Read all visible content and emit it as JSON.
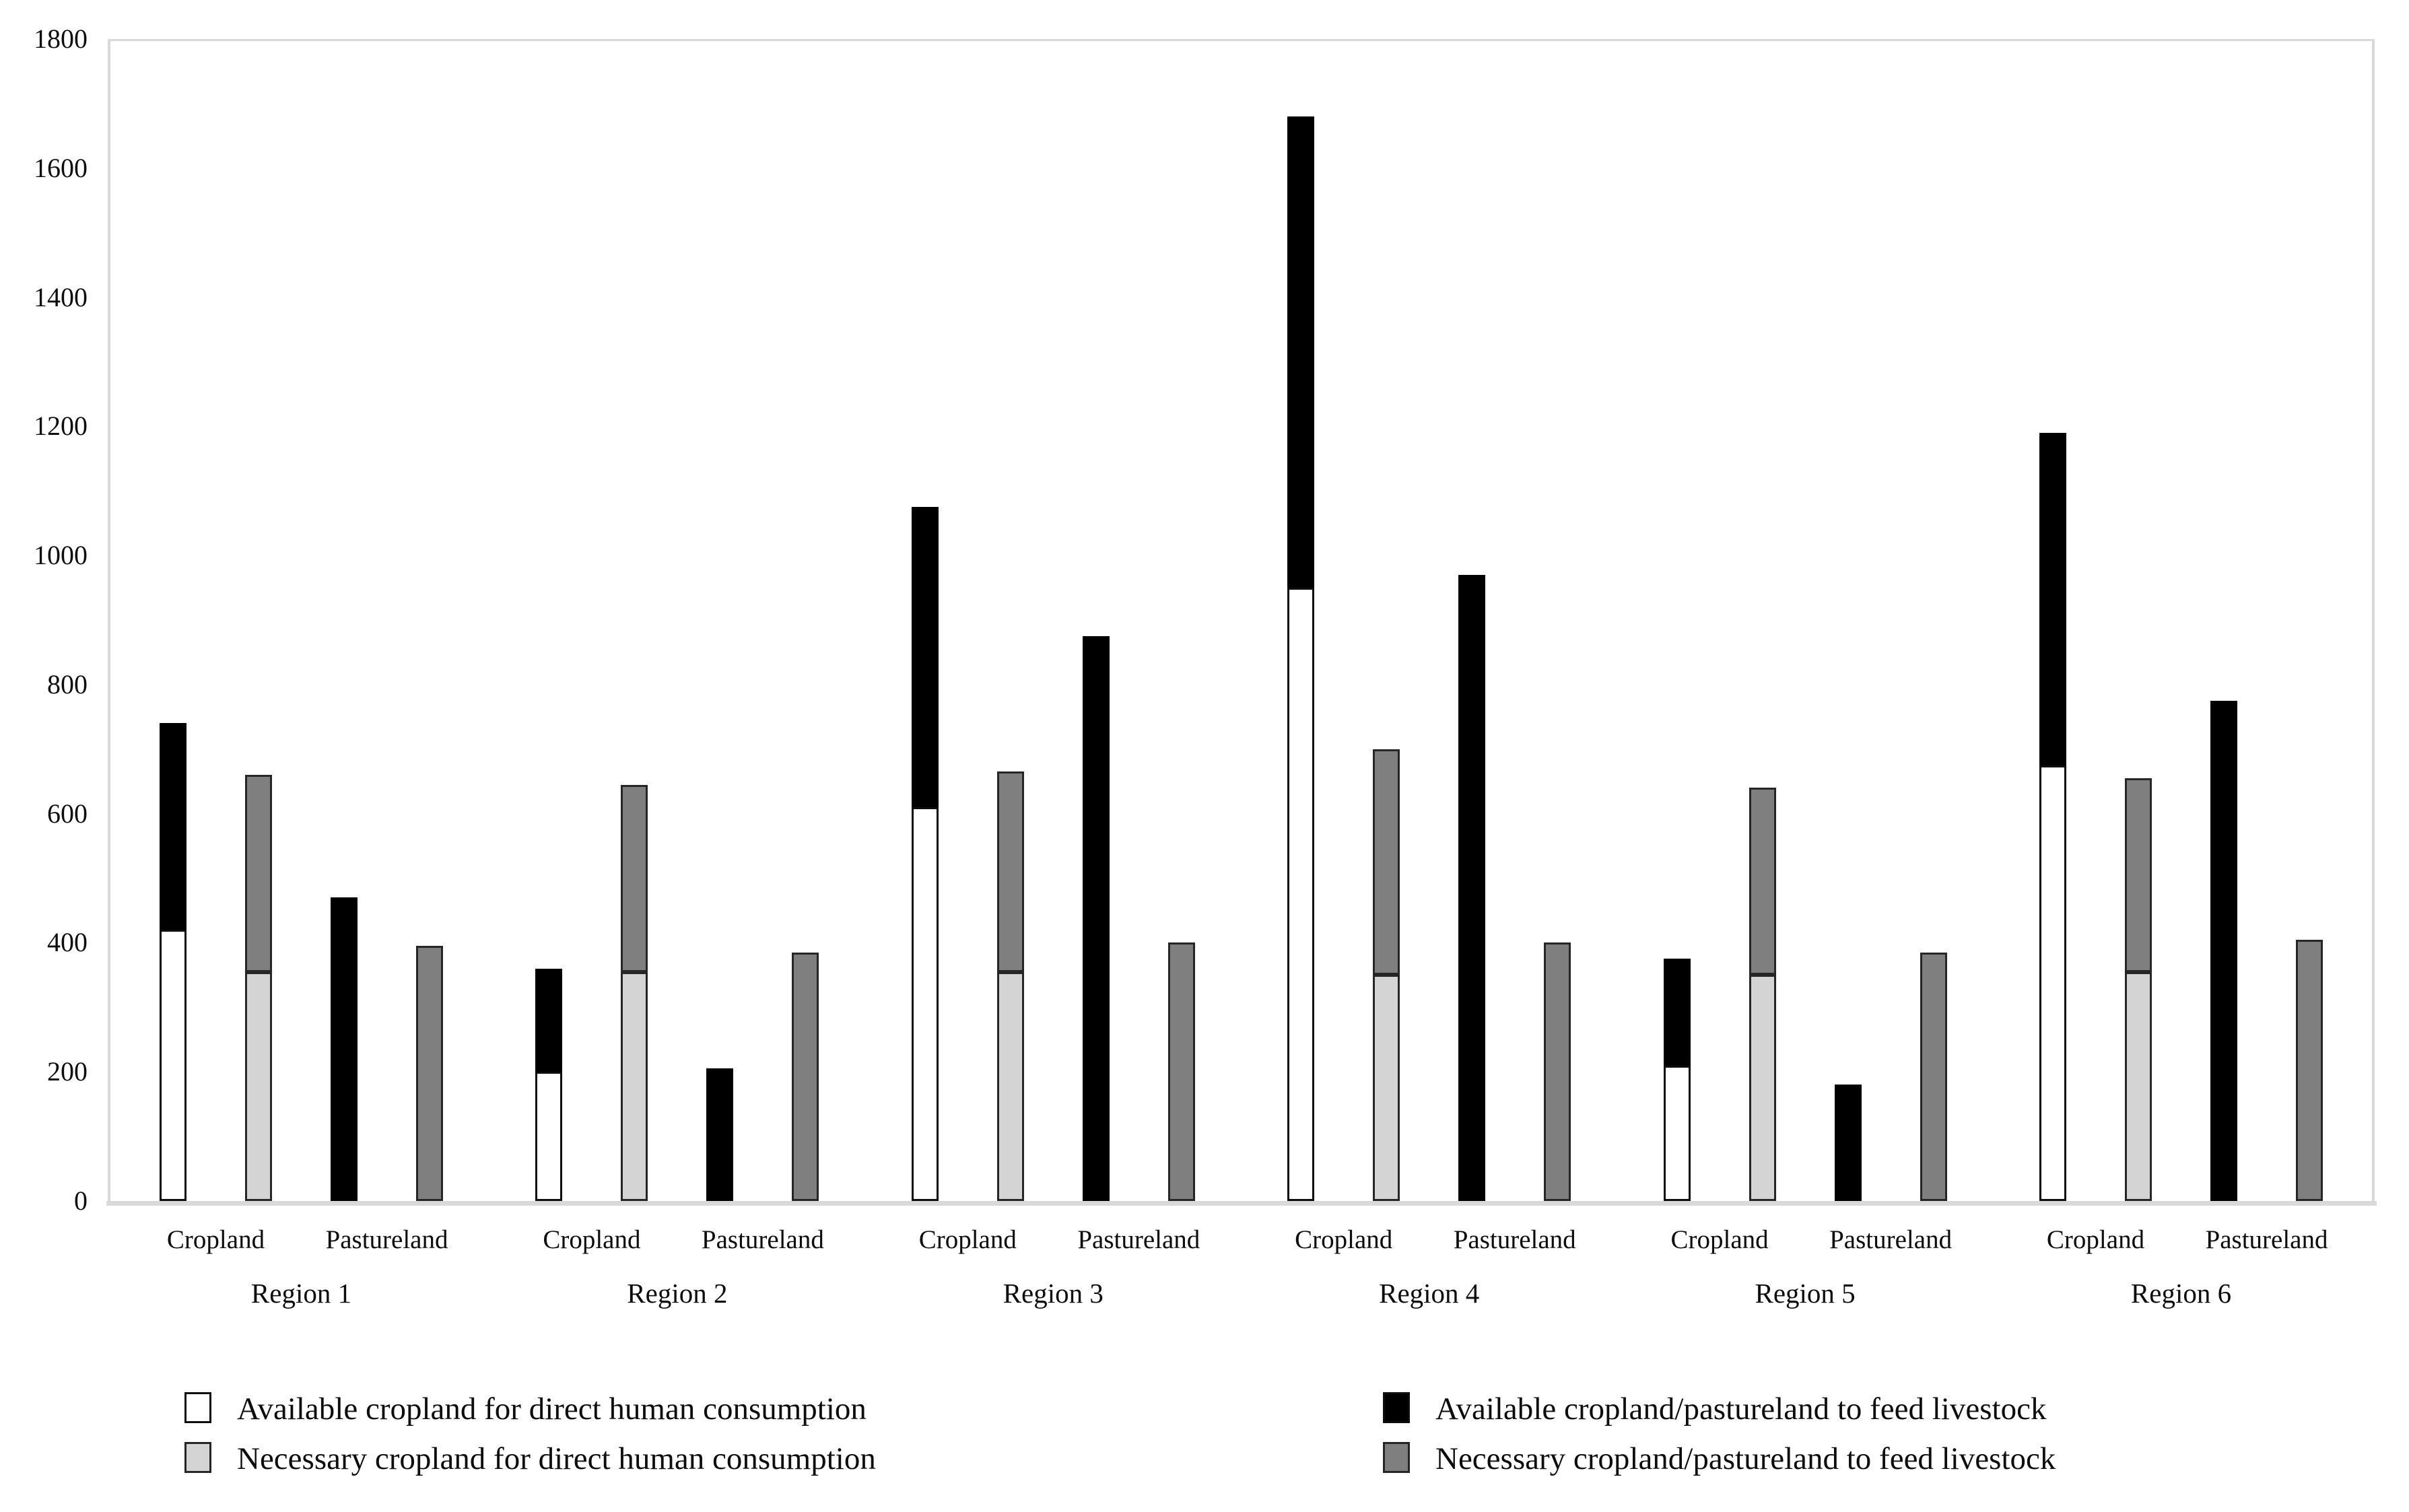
{
  "figure": {
    "background": "#ffffff"
  },
  "colors": {
    "available_human_fill": "#ffffff",
    "available_livestock_fill": "#000000",
    "necessary_human_fill": "#d4d4d4",
    "necessary_livestock_fill": "#7f7f7f",
    "bar_outline": "#0d0d0d",
    "axis_line": "#d9d9d9",
    "text": "#0d0d0d"
  },
  "axes": {
    "ylim": [
      0,
      1800
    ],
    "ytick_step": 200,
    "ytick_labels": [
      "0",
      "200",
      "400",
      "600",
      "800",
      "1000",
      "1200",
      "1400",
      "1600",
      "1800"
    ],
    "grid": "off",
    "cropland_label": "Cropland",
    "pastureland_label": "Pastureland"
  },
  "legend": {
    "position": "bottom-two-columns",
    "items": [
      {
        "label": "Available cropland for direct human consumption",
        "swatch": "available_human",
        "column": 0,
        "row": 0
      },
      {
        "label": "Necessary cropland for direct human consumption",
        "swatch": "necessary_human",
        "column": 0,
        "row": 1
      },
      {
        "label": "Available cropland/pastureland to feed livestock",
        "swatch": "available_livestock",
        "column": 1,
        "row": 0
      },
      {
        "label": "Necessary cropland/pastureland to feed livestock",
        "swatch": "necessary_livestock",
        "column": 1,
        "row": 1
      }
    ]
  },
  "chart_data": {
    "type": "bar",
    "subtype": "stacked-grouped",
    "title": "",
    "xlabel": "",
    "ylabel": "",
    "ylim": [
      0,
      1800
    ],
    "categories": [
      "Region 1",
      "Region 2",
      "Region 3",
      "Region 4",
      "Region 5",
      "Region 6"
    ],
    "group_structure": "Each region has two Cropland stacked bars (available: white+black, necessary: light gray+dark gray) and two Pastureland bars (available: black, necessary: dark gray)",
    "series": [
      {
        "name": "Available cropland for direct human consumption",
        "bar": "cropland-available",
        "values": [
          420,
          200,
          610,
          950,
          210,
          675
        ]
      },
      {
        "name": "Available cropland to feed livestock",
        "bar": "cropland-available",
        "values": [
          320,
          160,
          465,
          730,
          165,
          515
        ]
      },
      {
        "name": "Necessary cropland for direct human consumption",
        "bar": "cropland-necessary",
        "values": [
          355,
          355,
          355,
          350,
          350,
          355
        ]
      },
      {
        "name": "Necessary cropland to feed livestock",
        "bar": "cropland-necessary",
        "values": [
          305,
          290,
          310,
          350,
          290,
          300
        ]
      },
      {
        "name": "Available pastureland to feed livestock",
        "bar": "pastureland-available",
        "values": [
          470,
          205,
          875,
          970,
          180,
          775
        ]
      },
      {
        "name": "Necessary pastureland to feed livestock",
        "bar": "pastureland-necessary",
        "values": [
          395,
          385,
          400,
          400,
          385,
          405
        ]
      }
    ],
    "regions": [
      {
        "name": "Region 1",
        "cropland": {
          "available_human": 420,
          "available_livestock": 320,
          "necessary_human": 355,
          "necessary_livestock": 305
        },
        "pastureland": {
          "available_livestock": 470,
          "necessary_livestock": 395
        }
      },
      {
        "name": "Region 2",
        "cropland": {
          "available_human": 200,
          "available_livestock": 160,
          "necessary_human": 355,
          "necessary_livestock": 290
        },
        "pastureland": {
          "available_livestock": 205,
          "necessary_livestock": 385
        }
      },
      {
        "name": "Region 3",
        "cropland": {
          "available_human": 610,
          "available_livestock": 465,
          "necessary_human": 355,
          "necessary_livestock": 310
        },
        "pastureland": {
          "available_livestock": 875,
          "necessary_livestock": 400
        }
      },
      {
        "name": "Region 4",
        "cropland": {
          "available_human": 950,
          "available_livestock": 730,
          "necessary_human": 350,
          "necessary_livestock": 350
        },
        "pastureland": {
          "available_livestock": 970,
          "necessary_livestock": 400
        }
      },
      {
        "name": "Region 5",
        "cropland": {
          "available_human": 210,
          "available_livestock": 165,
          "necessary_human": 350,
          "necessary_livestock": 290
        },
        "pastureland": {
          "available_livestock": 180,
          "necessary_livestock": 385
        }
      },
      {
        "name": "Region 6",
        "cropland": {
          "available_human": 675,
          "available_livestock": 515,
          "necessary_human": 355,
          "necessary_livestock": 300
        },
        "pastureland": {
          "available_livestock": 775,
          "necessary_livestock": 405
        }
      }
    ]
  }
}
